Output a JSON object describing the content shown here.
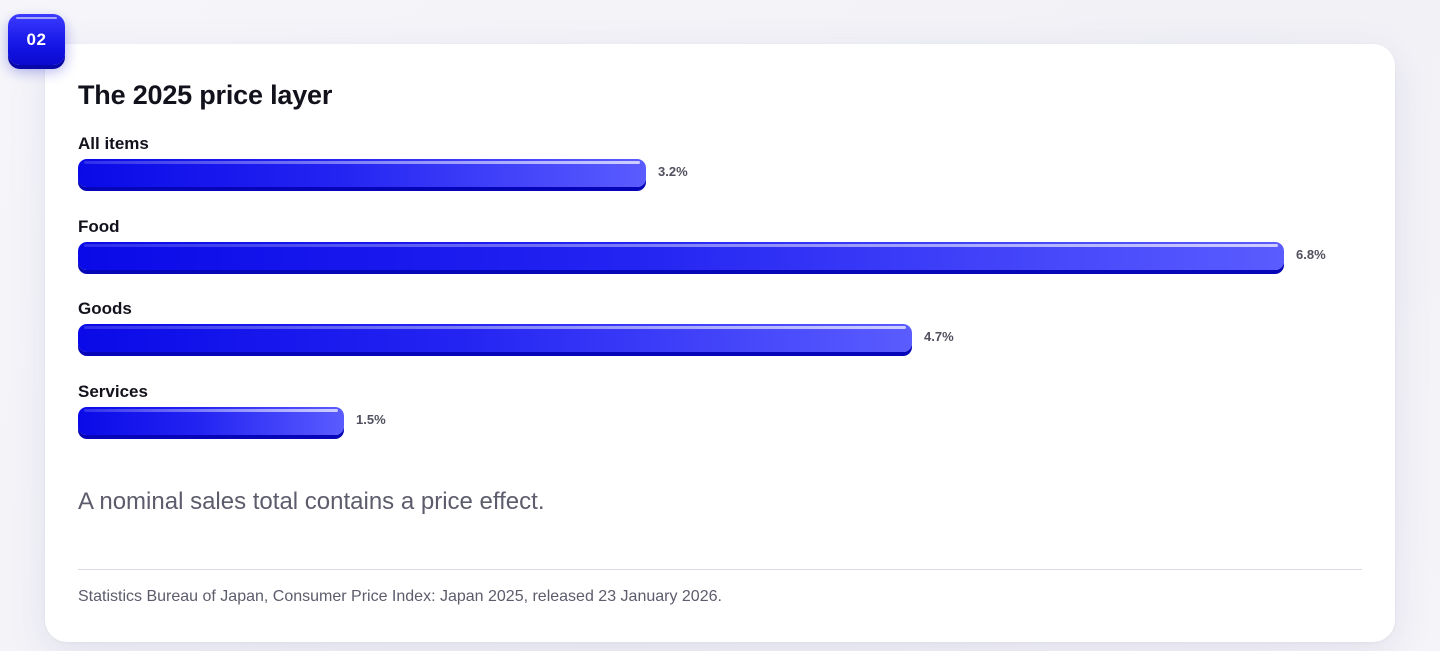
{
  "badge": {
    "label": "02"
  },
  "card": {
    "title": "The 2025 price layer",
    "note": "A nominal sales total contains a price effect.",
    "source": "Statistics Bureau of Japan, Consumer Price Index: Japan 2025, released 23 January 2026."
  },
  "colors": {
    "bar_start": "#0a0ae8",
    "bar_end": "#5a5cff",
    "badge": "#1616e6"
  },
  "chart_data": {
    "type": "bar",
    "orientation": "horizontal",
    "categories": [
      "All items",
      "Food",
      "Goods",
      "Services"
    ],
    "values": [
      3.2,
      6.8,
      4.7,
      1.5
    ],
    "value_labels": [
      "3.2%",
      "6.8%",
      "4.7%",
      "1.5%"
    ],
    "title": "The 2025 price layer",
    "xlabel": "",
    "ylabel": "",
    "xlim": [
      0,
      6.8
    ],
    "grid": false,
    "legend": "none"
  }
}
